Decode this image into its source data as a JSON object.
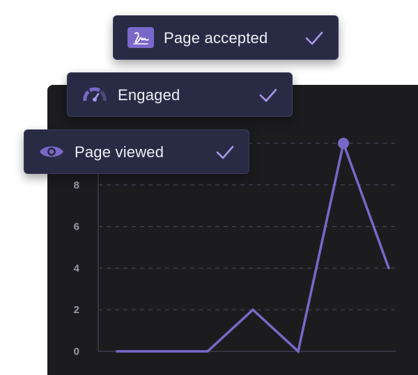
{
  "colors": {
    "accent": "#7a68c9",
    "panel_bg": "#1c1c1f",
    "card_bg": "#292b45",
    "grid": "#4a4a5e",
    "tick_text": "#9a9aa6"
  },
  "cards": [
    {
      "label": "Page accepted",
      "icon": "signature-icon",
      "status": "check-icon"
    },
    {
      "label": "Engaged",
      "icon": "gauge-icon",
      "status": "check-icon"
    },
    {
      "label": "Page viewed",
      "icon": "eye-icon",
      "status": "check-icon"
    }
  ],
  "chart_data": {
    "type": "line",
    "x": [
      0,
      1,
      2,
      3,
      4,
      5,
      6
    ],
    "y": [
      0,
      0,
      0,
      2,
      0,
      10,
      4
    ],
    "highlight_index": 5,
    "y_ticks": [
      "0",
      "2",
      "4",
      "6",
      "8"
    ],
    "ylim": [
      0,
      10
    ],
    "grid": true
  }
}
